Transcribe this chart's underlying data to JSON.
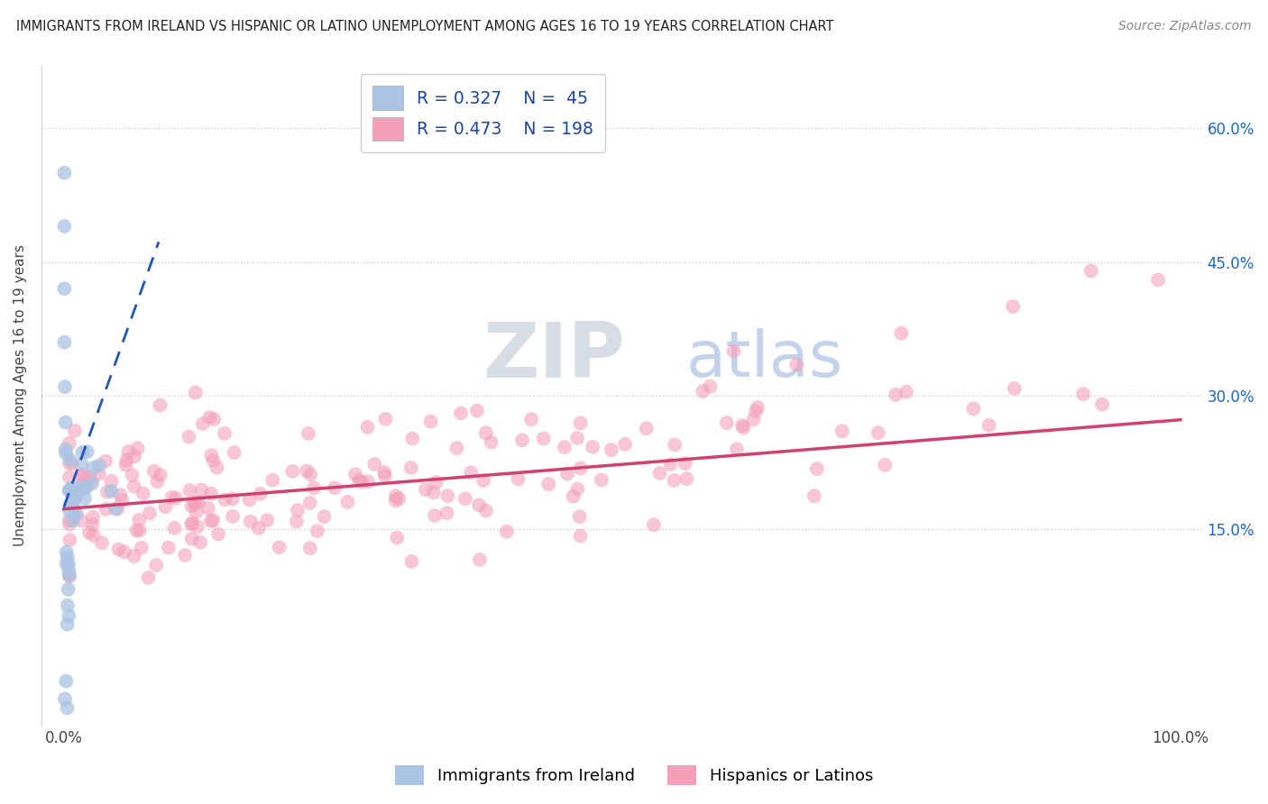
{
  "title": "IMMIGRANTS FROM IRELAND VS HISPANIC OR LATINO UNEMPLOYMENT AMONG AGES 16 TO 19 YEARS CORRELATION CHART",
  "source": "Source: ZipAtlas.com",
  "ylabel": "Unemployment Among Ages 16 to 19 years",
  "xlim": [
    -0.02,
    1.02
  ],
  "ylim": [
    -0.07,
    0.67
  ],
  "yticks": [
    0.15,
    0.3,
    0.45,
    0.6
  ],
  "ytick_labels": [
    "15.0%",
    "30.0%",
    "45.0%",
    "60.0%"
  ],
  "xtick_labels": [
    "0.0%",
    "100.0%"
  ],
  "legend_r1": "R = 0.327",
  "legend_n1": "N =  45",
  "legend_r2": "R = 0.473",
  "legend_n2": "N = 198",
  "color_blue": "#aac4e4",
  "color_pink": "#f4a0b8",
  "trendline_blue": "#2255bb",
  "trendline_pink": "#d04070",
  "background": "#ffffff",
  "blue_r": 0.327,
  "pink_r": 0.473,
  "blue_n": 45,
  "pink_n": 198
}
